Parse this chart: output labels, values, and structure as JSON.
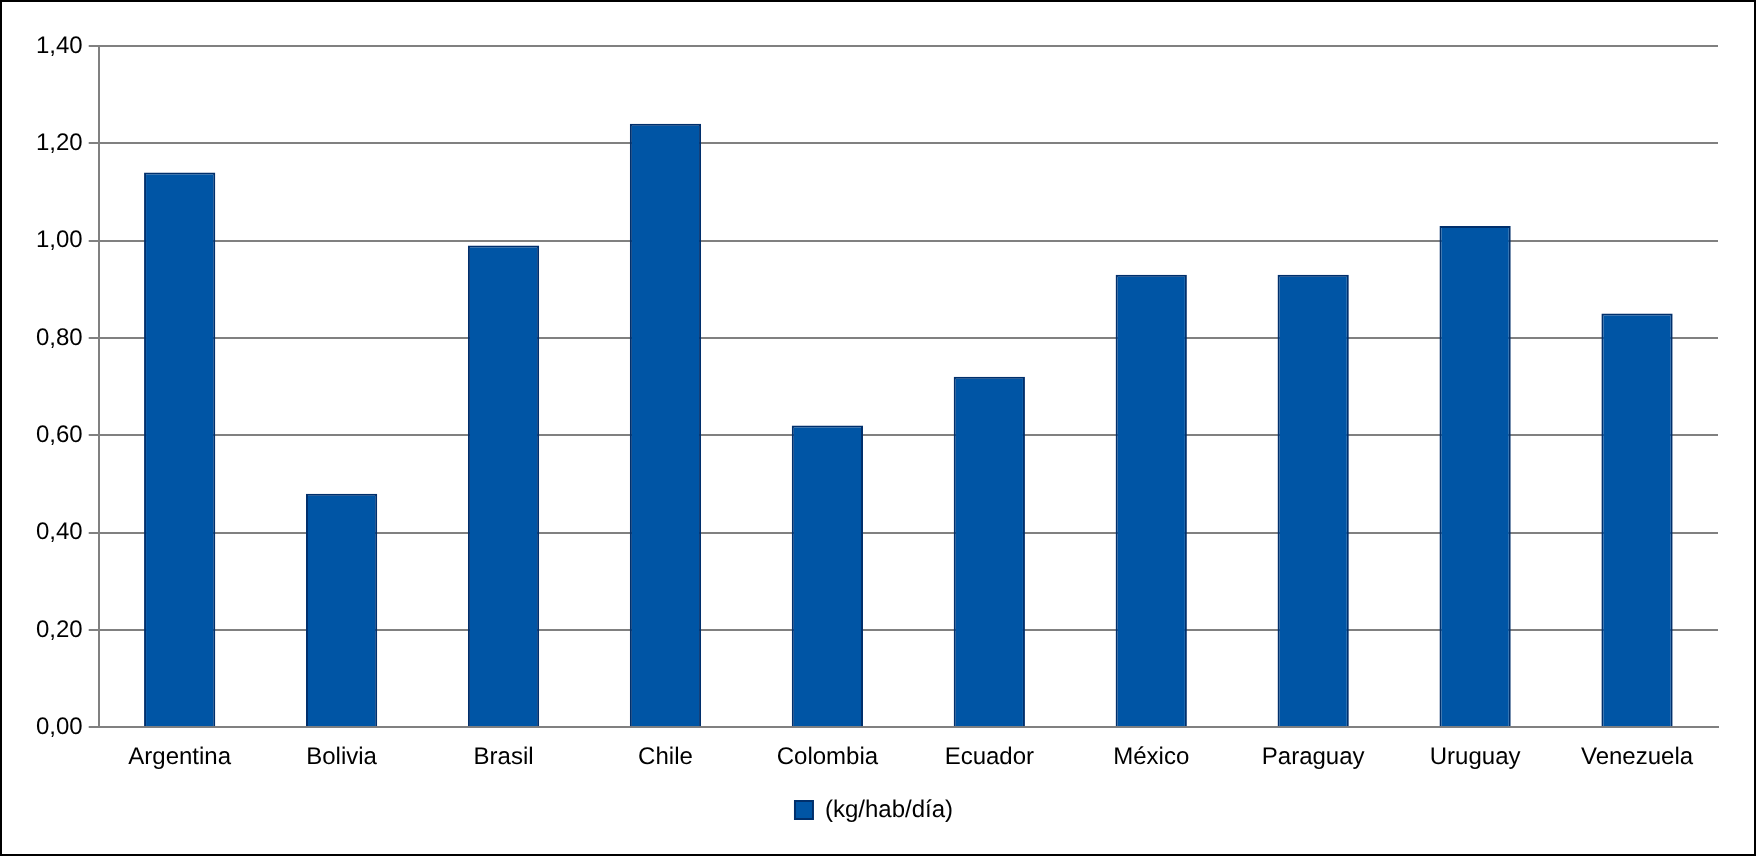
{
  "chart_data": {
    "type": "bar",
    "categories": [
      "Argentina",
      "Bolivia",
      "Brasil",
      "Chile",
      "Colombia",
      "Ecuador",
      "México",
      "Paraguay",
      "Uruguay",
      "Venezuela"
    ],
    "series": [
      {
        "name": "(kg/hab/día)",
        "color": "#0055a5",
        "values": [
          1.14,
          0.48,
          0.99,
          1.24,
          0.62,
          0.72,
          0.93,
          0.93,
          1.03,
          0.85
        ]
      }
    ],
    "ylim": [
      0,
      1.4
    ],
    "yticks": [
      {
        "value": 0,
        "label": "0,00"
      },
      {
        "value": 0.2,
        "label": "0,20"
      },
      {
        "value": 0.4,
        "label": "0,40"
      },
      {
        "value": 0.6,
        "label": "0,60"
      },
      {
        "value": 0.8,
        "label": "0,80"
      },
      {
        "value": 1,
        "label": "1,00"
      },
      {
        "value": 1.2,
        "label": "1,20"
      },
      {
        "value": 1.4,
        "label": "1,40"
      }
    ],
    "grid": "y",
    "legend": "bottom"
  }
}
